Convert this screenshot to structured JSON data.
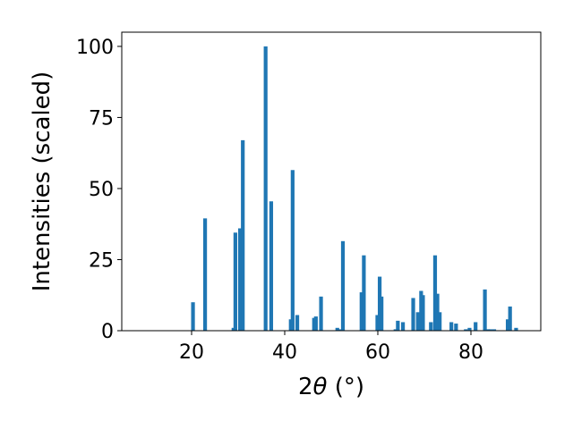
{
  "chart_data": {
    "type": "bar",
    "title": "",
    "xlabel_prefix": "2",
    "xlabel_symbol": "θ",
    "xlabel_suffix": " (°)",
    "ylabel": "Intensities (scaled)",
    "xlim": [
      5,
      95
    ],
    "ylim": [
      0,
      105
    ],
    "xticks": [
      20,
      40,
      60,
      80
    ],
    "yticks": [
      0,
      25,
      50,
      75,
      100
    ],
    "bar_color": "#1f77b4",
    "grid": false,
    "legend": "none",
    "x": [
      20.3,
      22.9,
      29.0,
      29.4,
      30.4,
      31.0,
      35.9,
      37.1,
      41.3,
      41.7,
      42.7,
      46.3,
      46.7,
      47.8,
      51.3,
      51.7,
      52.5,
      56.5,
      57.0,
      59.9,
      60.4,
      60.8,
      63.8,
      64.3,
      65.4,
      67.6,
      68.6,
      69.3,
      69.7,
      71.4,
      72.3,
      72.8,
      73.3,
      75.8,
      76.8,
      78.9,
      79.7,
      81.0,
      83.0,
      83.6,
      84.2,
      85.0,
      87.9,
      88.4,
      89.7
    ],
    "values": [
      10,
      39.5,
      1,
      34.5,
      36,
      67,
      100,
      45.5,
      4,
      56.5,
      5.5,
      4.5,
      5,
      12,
      1,
      0.5,
      31.5,
      13.5,
      26.5,
      5.5,
      19,
      12,
      0.5,
      3.5,
      3,
      11.5,
      6.5,
      14,
      12.5,
      3,
      26.5,
      13,
      6.5,
      3,
      2.5,
      0.5,
      1,
      3,
      14.5,
      0.5,
      0.5,
      0.5,
      4,
      8.5,
      1
    ]
  }
}
